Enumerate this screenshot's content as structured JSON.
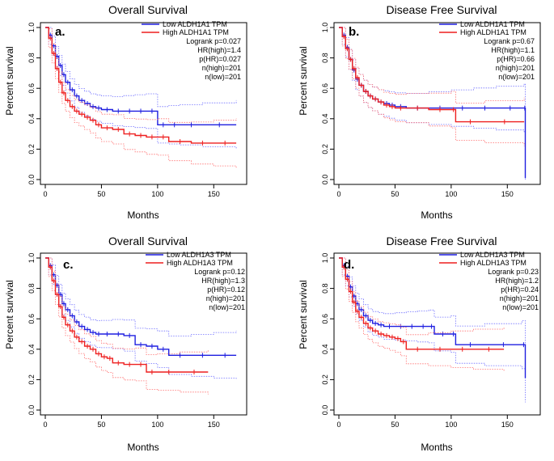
{
  "colors": {
    "low": "#1f1fe0",
    "high": "#ee1f1f",
    "ci_low": "#7070ff",
    "ci_high": "#ff7070",
    "frame": "#000000"
  },
  "chart_data": [
    {
      "type": "line",
      "letter": "a.",
      "title": "Overall Survival",
      "xlabel": "Months",
      "ylabel": "Percent survival",
      "xlim": [
        0,
        175
      ],
      "ylim": [
        0,
        1
      ],
      "xticks": [
        "0",
        "50",
        "100",
        "150"
      ],
      "yticks": [
        "0.0",
        "0.2",
        "0.4",
        "0.6",
        "0.8",
        "1.0"
      ],
      "legend": [
        "Low ALDH1A1 TPM",
        "High ALDH1A1 TPM"
      ],
      "stats": [
        "Logrank p=0.027",
        "HR(high)=1.4",
        "p(HR)=0.027",
        "n(high)=201",
        "n(low)=201"
      ],
      "series": [
        {
          "name": "Low ALDH1A1 TPM",
          "x": [
            0,
            3,
            6,
            9,
            12,
            15,
            18,
            22,
            26,
            30,
            35,
            40,
            45,
            50,
            60,
            70,
            80,
            90,
            100,
            110,
            120,
            140,
            170
          ],
          "y": [
            1,
            0.95,
            0.88,
            0.81,
            0.75,
            0.69,
            0.64,
            0.59,
            0.55,
            0.52,
            0.5,
            0.48,
            0.47,
            0.46,
            0.45,
            0.45,
            0.45,
            0.45,
            0.36,
            0.36,
            0.36,
            0.36,
            0.36
          ]
        },
        {
          "name": "High ALDH1A1 TPM",
          "x": [
            0,
            3,
            6,
            9,
            12,
            15,
            18,
            22,
            26,
            30,
            35,
            40,
            45,
            50,
            60,
            70,
            80,
            90,
            100,
            110,
            130,
            150,
            170
          ],
          "y": [
            1,
            0.93,
            0.83,
            0.73,
            0.64,
            0.57,
            0.52,
            0.48,
            0.45,
            0.43,
            0.41,
            0.39,
            0.36,
            0.34,
            0.33,
            0.3,
            0.29,
            0.28,
            0.28,
            0.25,
            0.24,
            0.24,
            0.24
          ]
        }
      ]
    },
    {
      "type": "line",
      "letter": "b.",
      "title": "Disease Free Survival",
      "xlabel": "Months",
      "ylabel": "Percent survival",
      "xlim": [
        0,
        175
      ],
      "ylim": [
        0,
        1
      ],
      "xticks": [
        "0",
        "50",
        "100",
        "150"
      ],
      "yticks": [
        "0.0",
        "0.2",
        "0.4",
        "0.6",
        "0.8",
        "1.0"
      ],
      "legend": [
        "Low ALDH1A1 TPM",
        "High ALDH1A1 TPM"
      ],
      "stats": [
        "Logrank p=0.67",
        "HR(high)=1.1",
        "p(HR)=0.66",
        "n(high)=201",
        "n(low)=201"
      ],
      "series": [
        {
          "name": "Low ALDH1A1 TPM",
          "x": [
            0,
            3,
            6,
            9,
            12,
            15,
            18,
            22,
            26,
            30,
            35,
            40,
            45,
            50,
            60,
            80,
            100,
            120,
            140,
            165,
            166
          ],
          "y": [
            1,
            0.95,
            0.87,
            0.79,
            0.72,
            0.66,
            0.62,
            0.58,
            0.55,
            0.53,
            0.51,
            0.5,
            0.49,
            0.48,
            0.47,
            0.47,
            0.47,
            0.47,
            0.47,
            0.47,
            0.01
          ]
        },
        {
          "name": "High ALDH1A1 TPM",
          "x": [
            0,
            3,
            6,
            9,
            12,
            15,
            18,
            22,
            26,
            30,
            35,
            40,
            45,
            50,
            60,
            80,
            100,
            104,
            130,
            165
          ],
          "y": [
            1,
            0.94,
            0.86,
            0.79,
            0.73,
            0.67,
            0.62,
            0.58,
            0.55,
            0.53,
            0.51,
            0.49,
            0.48,
            0.47,
            0.47,
            0.46,
            0.46,
            0.38,
            0.38,
            0.38
          ]
        }
      ]
    },
    {
      "type": "line",
      "letter": "c.",
      "title": "Overall Survival",
      "xlabel": "Months",
      "ylabel": "Percent survival",
      "xlim": [
        0,
        175
      ],
      "ylim": [
        0,
        1
      ],
      "xticks": [
        "0",
        "50",
        "100",
        "150"
      ],
      "yticks": [
        "0.0",
        "0.2",
        "0.4",
        "0.6",
        "0.8",
        "1.0"
      ],
      "legend": [
        "Low ALDH1A3 TPM",
        "High ALDH1A3 TPM"
      ],
      "stats": [
        "Logrank p=0.12",
        "HR(high)=1.3",
        "p(HR)=0.12",
        "n(high)=201",
        "n(low)=201"
      ],
      "series": [
        {
          "name": "Low ALDH1A3 TPM",
          "x": [
            0,
            3,
            6,
            9,
            12,
            15,
            18,
            22,
            26,
            30,
            35,
            40,
            45,
            50,
            60,
            70,
            80,
            90,
            100,
            110,
            130,
            150,
            170
          ],
          "y": [
            1,
            0.95,
            0.89,
            0.82,
            0.76,
            0.7,
            0.66,
            0.62,
            0.58,
            0.55,
            0.53,
            0.51,
            0.5,
            0.5,
            0.5,
            0.49,
            0.43,
            0.42,
            0.4,
            0.36,
            0.36,
            0.36,
            0.36
          ]
        },
        {
          "name": "High ALDH1A3 TPM",
          "x": [
            0,
            3,
            6,
            9,
            12,
            15,
            18,
            22,
            26,
            30,
            35,
            40,
            45,
            50,
            55,
            60,
            70,
            80,
            90,
            100,
            120,
            145
          ],
          "y": [
            1,
            0.94,
            0.85,
            0.76,
            0.68,
            0.61,
            0.56,
            0.52,
            0.48,
            0.45,
            0.42,
            0.4,
            0.37,
            0.35,
            0.34,
            0.31,
            0.3,
            0.3,
            0.25,
            0.25,
            0.25,
            0.25
          ]
        }
      ]
    },
    {
      "type": "line",
      "letter": "d.",
      "title": "Disease Free Survival",
      "xlabel": "Months",
      "ylabel": "Percent survival",
      "xlim": [
        0,
        175
      ],
      "ylim": [
        0,
        1
      ],
      "xticks": [
        "0",
        "50",
        "100",
        "150"
      ],
      "yticks": [
        "0.0",
        "0.2",
        "0.4",
        "0.6",
        "0.8",
        "1.0"
      ],
      "legend": [
        "Low ALDH1A3 TPM",
        "High ALDH1A3 TPM"
      ],
      "stats": [
        "Logrank p=0.23",
        "HR(high)=1.2",
        "p(HR)=0.24",
        "n(high)=201",
        "n(low)=201"
      ],
      "series": [
        {
          "name": "Low ALDH1A3 TPM",
          "x": [
            0,
            3,
            6,
            9,
            12,
            15,
            18,
            22,
            26,
            30,
            35,
            40,
            50,
            60,
            70,
            80,
            85,
            100,
            104,
            130,
            163,
            166
          ],
          "y": [
            1,
            0.95,
            0.88,
            0.81,
            0.75,
            0.7,
            0.66,
            0.62,
            0.59,
            0.57,
            0.56,
            0.55,
            0.55,
            0.55,
            0.55,
            0.55,
            0.5,
            0.5,
            0.43,
            0.43,
            0.43,
            0.21
          ]
        },
        {
          "name": "High ALDH1A3 TPM",
          "x": [
            0,
            3,
            6,
            9,
            12,
            15,
            18,
            22,
            26,
            30,
            35,
            40,
            45,
            50,
            55,
            60,
            80,
            100,
            120,
            147
          ],
          "y": [
            1,
            0.94,
            0.86,
            0.78,
            0.71,
            0.65,
            0.61,
            0.57,
            0.54,
            0.52,
            0.5,
            0.49,
            0.48,
            0.47,
            0.45,
            0.4,
            0.4,
            0.4,
            0.4,
            0.4
          ]
        }
      ]
    }
  ]
}
